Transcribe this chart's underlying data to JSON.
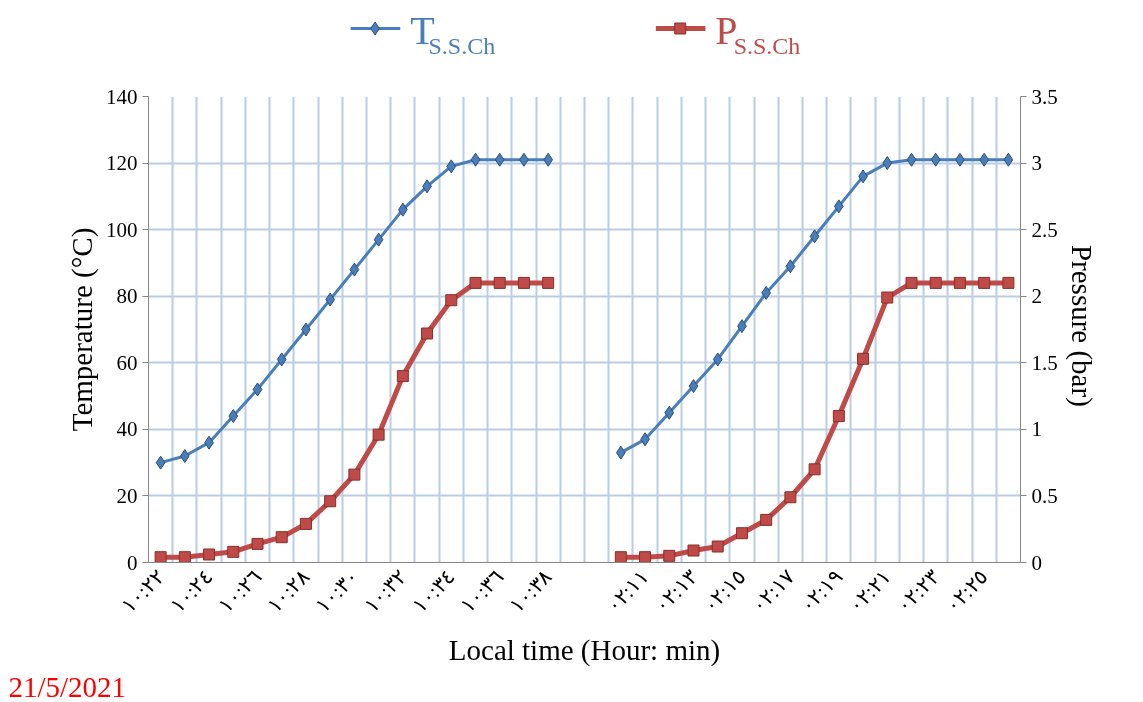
{
  "chart_data": {
    "type": "line",
    "xlabel": "Local time (Hour: min)",
    "ylabel": "Temperature (°C)",
    "y2label": "Pressure  (bar)",
    "categories": [
      "١٠:٢٢",
      null,
      "١٠:٢٤",
      null,
      "١٠:٢٦",
      null,
      "١٠:٢٨",
      null,
      "١٠:٣٠",
      null,
      "١٠:٣٢",
      null,
      "١٠:٣٤",
      null,
      "١٠:٣٦",
      null,
      "١٠:٣٨",
      null,
      null,
      null,
      "٠٢:١١",
      null,
      "٠٢:١٣",
      null,
      "٠٢:١٥",
      null,
      "٠٢:١٧",
      null,
      "٠٢:١٩",
      null,
      "٠٢:٢١",
      null,
      "٠٢:٢٣",
      null,
      "٠٢:٢٥",
      null
    ],
    "series": [
      {
        "name": "T$_{S.S.Ch}$",
        "color": "#4a7ebb",
        "marker": "diamond",
        "values": [
          30,
          32,
          36,
          44,
          52,
          61,
          70,
          79,
          88,
          97,
          106,
          113,
          119,
          121,
          121,
          121,
          121,
          null,
          null,
          33,
          37,
          45,
          53,
          61,
          71,
          81,
          89,
          98,
          107,
          116,
          120,
          121,
          121,
          121,
          121,
          121
        ]
      },
      {
        "name": "P$_{S.S.Ch}$",
        "color": "#be4b48",
        "marker": "square",
        "axis": "y2",
        "values": [
          0.04,
          0.04,
          0.06,
          0.08,
          0.14,
          0.19,
          0.29,
          0.46,
          0.66,
          0.96,
          1.4,
          1.72,
          1.97,
          2.1,
          2.1,
          2.1,
          2.1,
          null,
          null,
          0.04,
          0.04,
          0.05,
          0.09,
          0.12,
          0.22,
          0.32,
          0.49,
          0.7,
          1.1,
          1.53,
          1.99,
          2.1,
          2.1,
          2.1,
          2.1,
          2.1
        ]
      }
    ],
    "ylim": [
      0,
      140
    ],
    "yticks": [
      0,
      20,
      40,
      60,
      80,
      100,
      120,
      140
    ],
    "y2lim": [
      0,
      3.5
    ],
    "y2ticks": [
      0,
      0.5,
      1,
      1.5,
      2,
      2.5,
      3,
      3.5
    ],
    "grid": true,
    "legend": "top",
    "annotations": [
      "21/5/2021"
    ]
  }
}
